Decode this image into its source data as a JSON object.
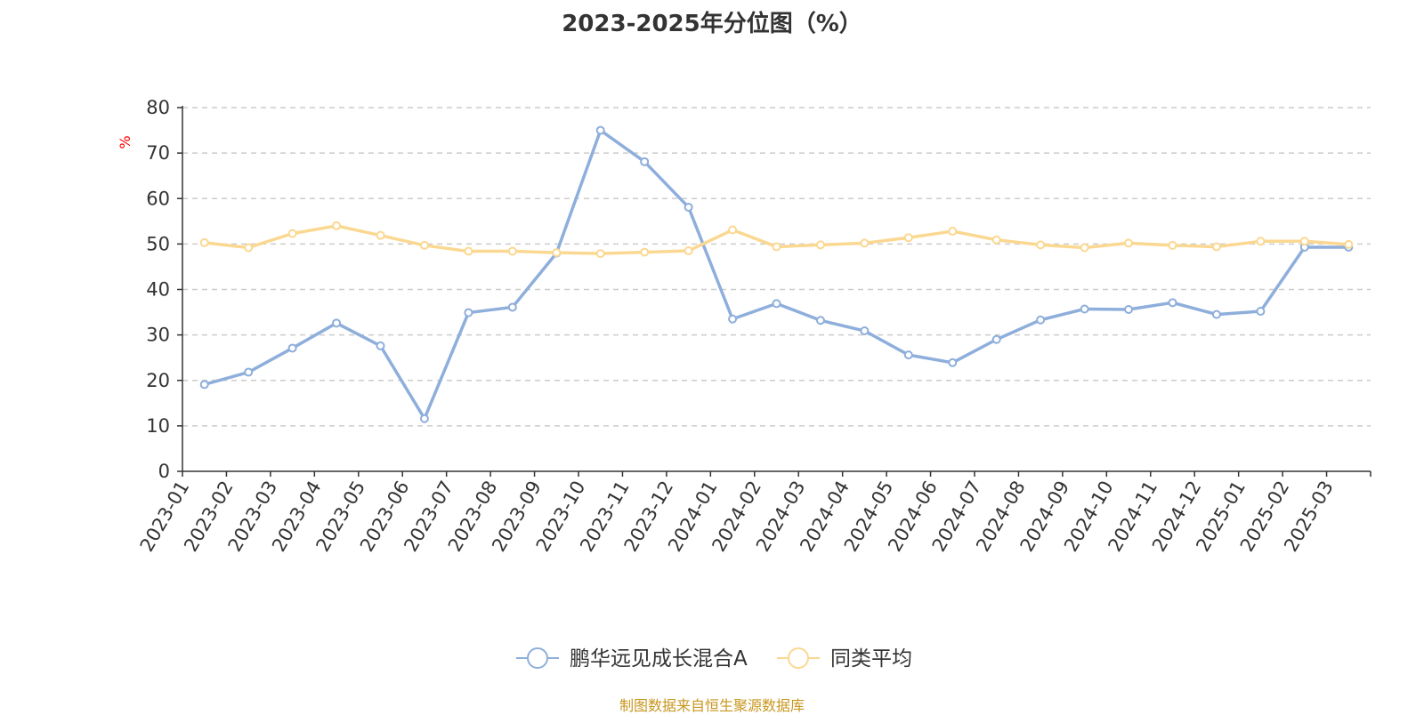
{
  "chart_data": {
    "type": "line",
    "title": "2023-2025年分位图（%）",
    "ylabel": "%",
    "ylim": [
      0,
      80
    ],
    "yticks": [
      0,
      10,
      20,
      30,
      40,
      50,
      60,
      70,
      80
    ],
    "grid": true,
    "legend_position": "bottom",
    "categories": [
      "2023-01",
      "2023-02",
      "2023-03",
      "2023-04",
      "2023-05",
      "2023-06",
      "2023-07",
      "2023-08",
      "2023-09",
      "2023-10",
      "2023-11",
      "2023-12",
      "2024-01",
      "2024-02",
      "2024-03",
      "2024-04",
      "2024-05",
      "2024-06",
      "2024-07",
      "2024-08",
      "2024-09",
      "2024-10",
      "2024-11",
      "2024-12",
      "2025-01",
      "2025-02",
      "2025-03"
    ],
    "series": [
      {
        "name": "鹏华远见成长混合A",
        "color": "#8eaedb",
        "values": [
          19.1,
          21.8,
          27.1,
          32.6,
          27.6,
          11.6,
          34.9,
          36.1,
          48.0,
          75.0,
          68.1,
          58.1,
          33.5,
          36.9,
          33.2,
          30.9,
          25.6,
          23.9,
          29.0,
          33.3,
          35.7,
          35.6,
          37.1,
          34.5,
          35.2,
          49.3,
          49.3
        ]
      },
      {
        "name": "同类平均",
        "color": "#fbd891",
        "values": [
          50.3,
          49.2,
          52.3,
          54.0,
          51.9,
          49.7,
          48.4,
          48.4,
          48.1,
          47.9,
          48.2,
          48.5,
          53.1,
          49.4,
          49.8,
          50.2,
          51.4,
          52.8,
          50.9,
          49.8,
          49.2,
          50.2,
          49.7,
          49.4,
          50.6,
          50.6,
          49.9
        ]
      }
    ]
  },
  "footer": {
    "source": "制图数据来自恒生聚源数据库"
  }
}
